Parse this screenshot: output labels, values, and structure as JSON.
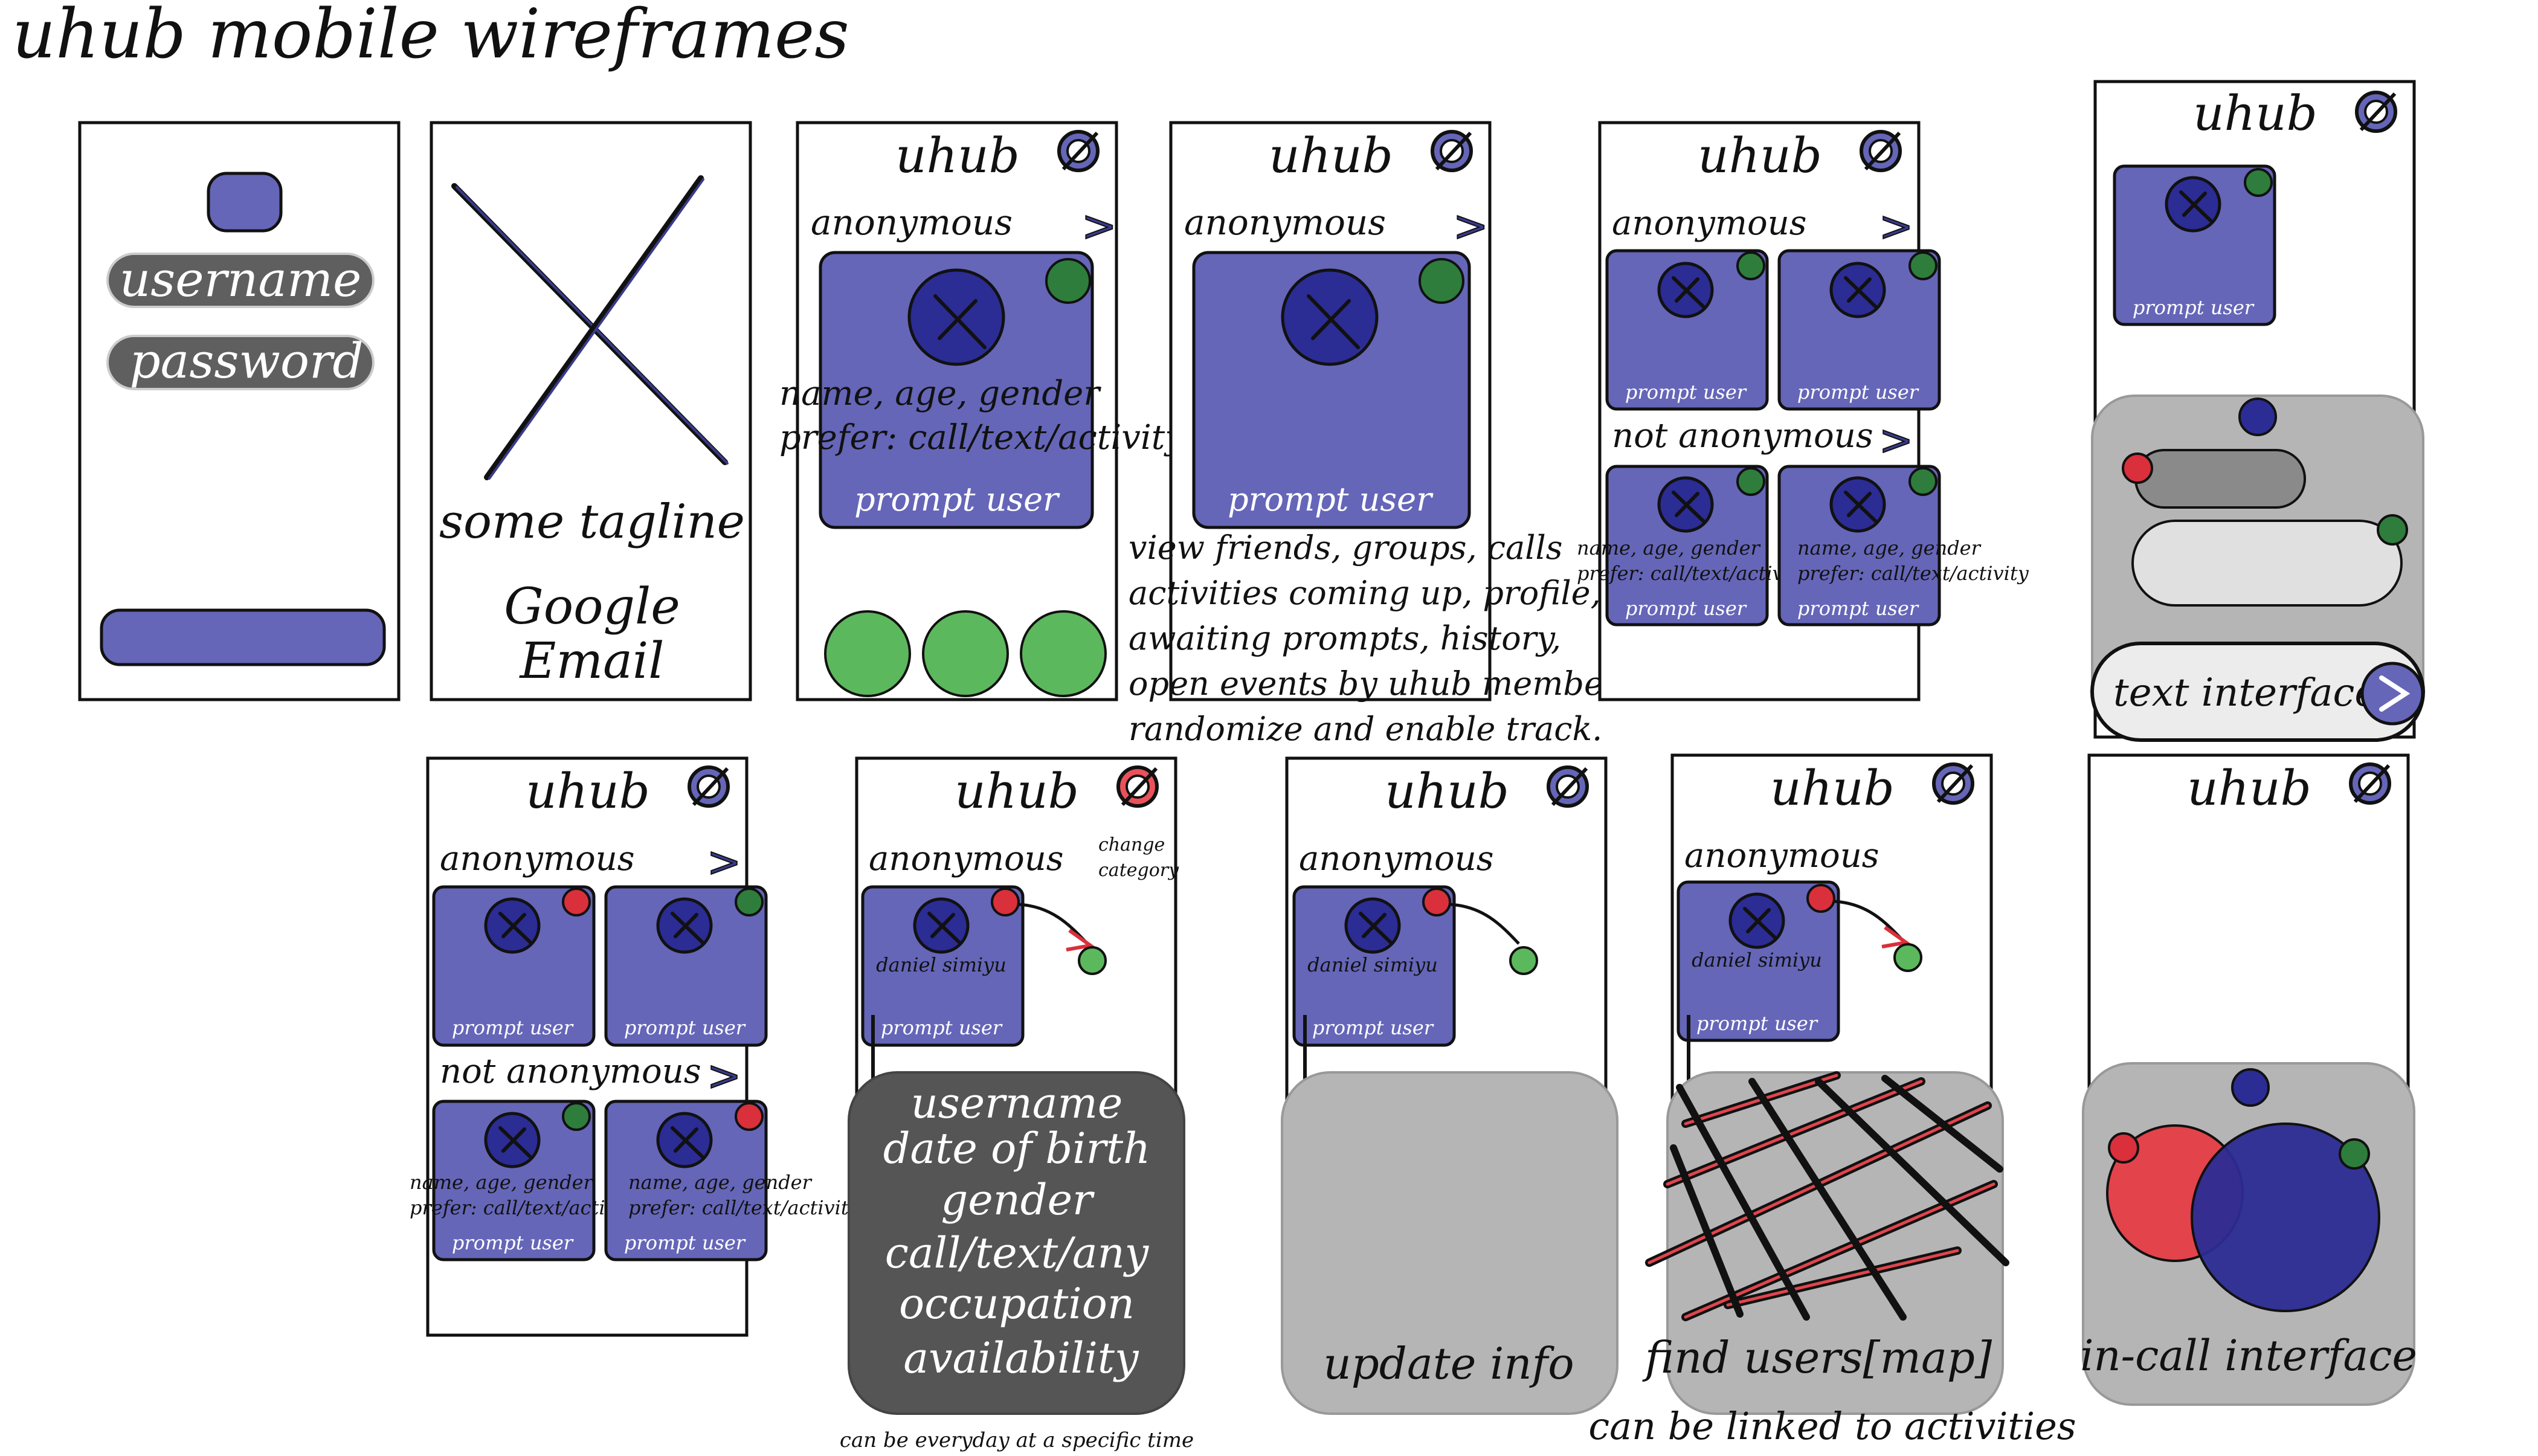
{
  "title": "uhub mobile wireframes",
  "brand": "uhub",
  "login": {
    "username": "username",
    "password": "password"
  },
  "splash": {
    "tagline": "some tagline",
    "option_google": "Google",
    "option_email": "Email"
  },
  "sections": {
    "anonymous": "anonymous",
    "not_anonymous": "not anonymous",
    "arrow": ">"
  },
  "card": {
    "prompt": "prompt user",
    "info_line1": "name, age, gender",
    "info_line2": "prefer: call/text/activity",
    "user_name": "daniel simiyu"
  },
  "notes": {
    "main_menu": [
      "view friends, groups, calls",
      "activities coming up, profile,",
      "awaiting prompts, history,",
      "open events by uhub members,",
      "randomize and enable track."
    ],
    "change_category": [
      "change",
      "category"
    ],
    "availability_hint": "can be everyday at a specific time",
    "map_hint": "can be linked to activities"
  },
  "profile_fields": [
    "username",
    "date of birth",
    "gender",
    "call/text/any",
    "occupation",
    "availability"
  ],
  "panels": {
    "text_interface": "text interface",
    "update_info": "update info",
    "find_users": "find users[map]",
    "in_call": "in-call interface"
  },
  "colors": {
    "card_purple": "#6566b8",
    "avatar_navy": "#2b2c94",
    "online_green": "#2e7d3c",
    "light_green": "#5cb85c",
    "status_red": "#d9303b",
    "panel_gray": "#b5b5b5",
    "panel_dark": "#555555"
  }
}
